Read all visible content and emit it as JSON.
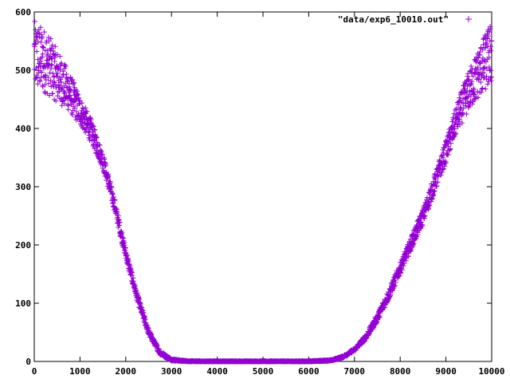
{
  "chart_data": {
    "type": "scatter",
    "title": "",
    "xlabel": "",
    "ylabel": "",
    "xlim": [
      0,
      10000
    ],
    "ylim": [
      0,
      600
    ],
    "x_ticks": [
      0,
      1000,
      2000,
      3000,
      4000,
      5000,
      6000,
      7000,
      8000,
      9000,
      10000
    ],
    "y_ticks": [
      0,
      100,
      200,
      300,
      400,
      500,
      600
    ],
    "x_tick_labels": [
      "0",
      "1000",
      "2000",
      "3000",
      "4000",
      "5000",
      "6000",
      "7000",
      "8000",
      "9000",
      "10000"
    ],
    "y_tick_labels": [
      "0",
      "100",
      "200",
      "300",
      "400",
      "500",
      "600"
    ],
    "grid": false,
    "legend_position": "top-right",
    "marker": "+",
    "color": "#9400d3",
    "series": [
      {
        "name": "\"data/exp6_10010.out\"",
        "color": "#9400d3",
        "x": [
          0,
          250,
          500,
          750,
          1000,
          1250,
          1500,
          1750,
          2000,
          2250,
          2500,
          2750,
          3000,
          3250,
          3500,
          4000,
          4500,
          5000,
          5500,
          6000,
          6500,
          6750,
          7000,
          7250,
          7500,
          7750,
          8000,
          8250,
          8500,
          8750,
          9000,
          9250,
          9500,
          9750,
          10000
        ],
        "y": [
          525,
          515,
          490,
          465,
          430,
          395,
          345,
          270,
          185,
          110,
          50,
          15,
          3,
          1,
          0,
          0,
          0,
          0,
          0,
          0,
          2,
          8,
          20,
          42,
          75,
          115,
          160,
          205,
          250,
          305,
          360,
          420,
          465,
          500,
          530
        ],
        "spread": [
          60,
          55,
          45,
          35,
          25,
          20,
          15,
          12,
          10,
          8,
          6,
          4,
          2,
          1,
          1,
          1,
          1,
          1,
          1,
          1,
          1,
          2,
          3,
          5,
          7,
          9,
          10,
          12,
          14,
          16,
          20,
          25,
          35,
          45,
          55
        ]
      }
    ]
  }
}
